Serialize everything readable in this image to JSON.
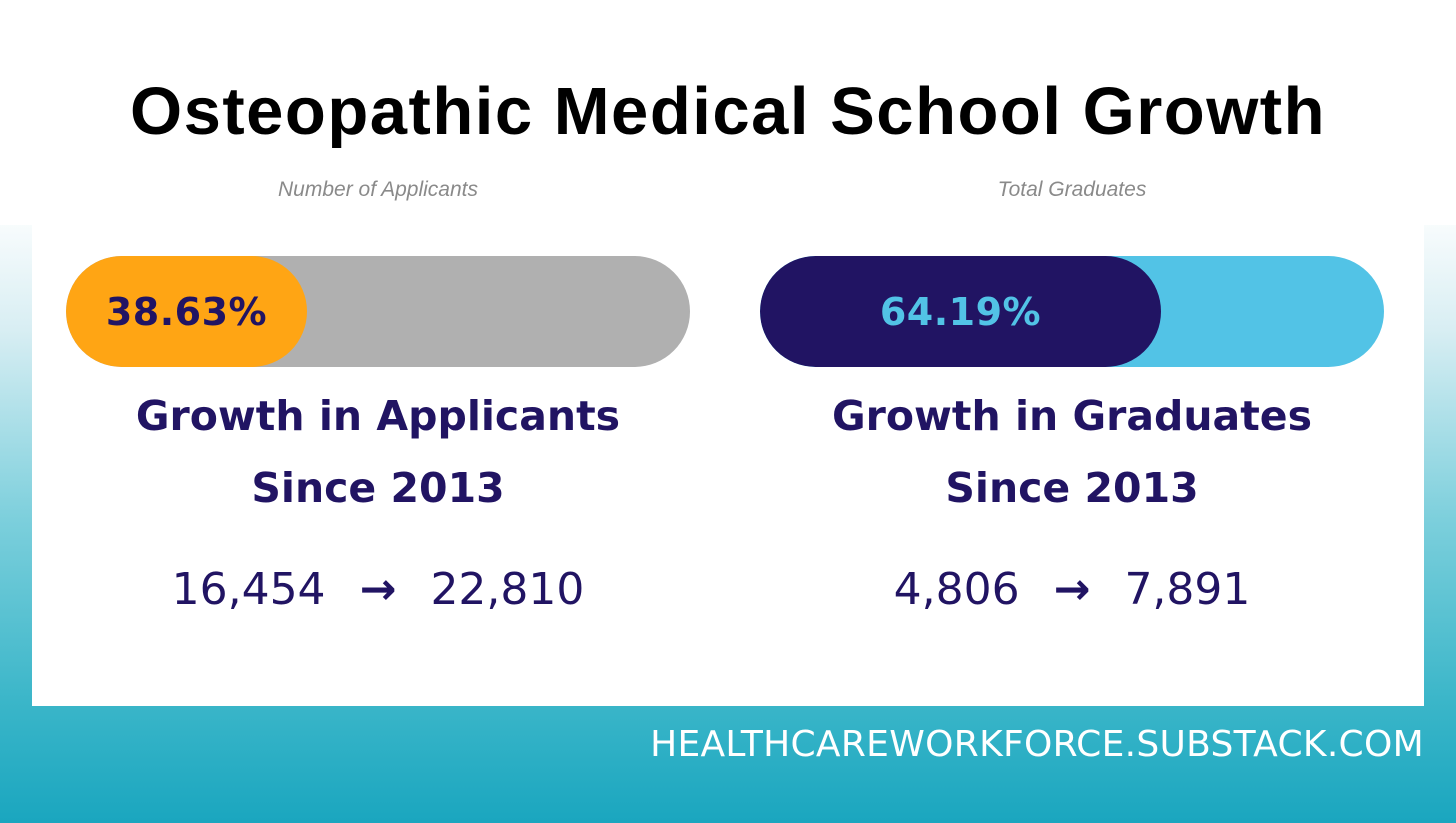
{
  "title": "Osteopathic Medical School Growth",
  "footer": "HEALTHCAREWORKFORCE.SUBSTACK.COM",
  "colors": {
    "applicants_fill": "#FFA514",
    "applicants_track": "#B0B0B0",
    "applicants_pct_text": "#211463",
    "graduates_fill": "#211463",
    "graduates_track": "#52C3E6",
    "graduates_pct_text": "#52C3E6",
    "text_navy": "#211463"
  },
  "chart_data": [
    {
      "type": "bar",
      "title": "Number of Applicants",
      "percent_label": "38.63%",
      "fill_fraction": 0.3863,
      "caption_line1": "Growth in Applicants",
      "caption_line2": "Since 2013",
      "from_value": "16,454",
      "arrow": "→",
      "to_value": "22,810"
    },
    {
      "type": "bar",
      "title": "Total Graduates",
      "percent_label": "64.19%",
      "fill_fraction": 0.6419,
      "caption_line1": "Growth in Graduates",
      "caption_line2": "Since 2013",
      "from_value": "4,806",
      "arrow": "→",
      "to_value": "7,891"
    }
  ]
}
